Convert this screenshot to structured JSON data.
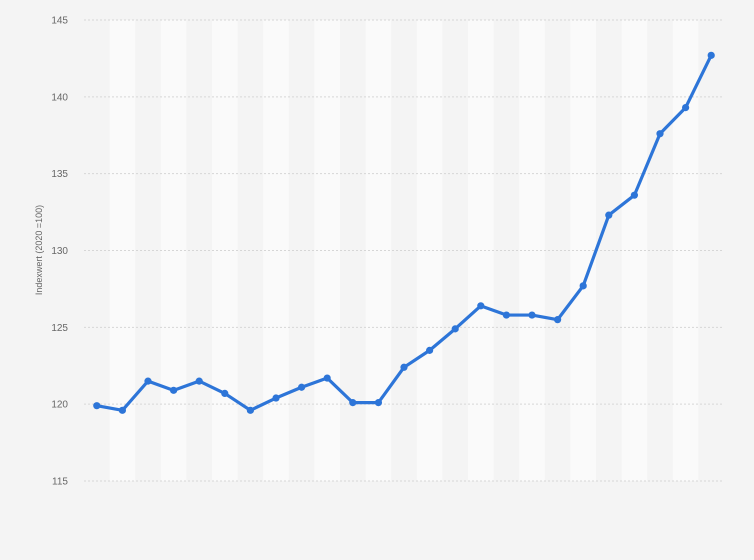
{
  "chart_data": {
    "type": "line",
    "title": "",
    "xlabel": "",
    "ylabel": "Indexwert (2020 =100)",
    "ylim": [
      115,
      145
    ],
    "yticks": [
      115,
      120,
      125,
      130,
      135,
      140,
      145
    ],
    "grid": true,
    "x": [
      1,
      2,
      3,
      4,
      5,
      6,
      7,
      8,
      9,
      10,
      11,
      12,
      13,
      14,
      15,
      16,
      17,
      18,
      19,
      20,
      21,
      22,
      23,
      24,
      25
    ],
    "series": [
      {
        "values": [
          119.9,
          119.6,
          121.5,
          120.9,
          121.5,
          120.7,
          119.6,
          120.4,
          121.1,
          121.7,
          120.1,
          120.1,
          122.4,
          123.5,
          124.9,
          126.4,
          125.8,
          125.8,
          125.5,
          127.7,
          132.3,
          133.6,
          137.6,
          139.3,
          142.7
        ]
      }
    ],
    "colors": {
      "line": "#2d75d8",
      "background": "#f4f4f4",
      "band": "#fafafa",
      "grid": "#d6d6d6"
    }
  }
}
